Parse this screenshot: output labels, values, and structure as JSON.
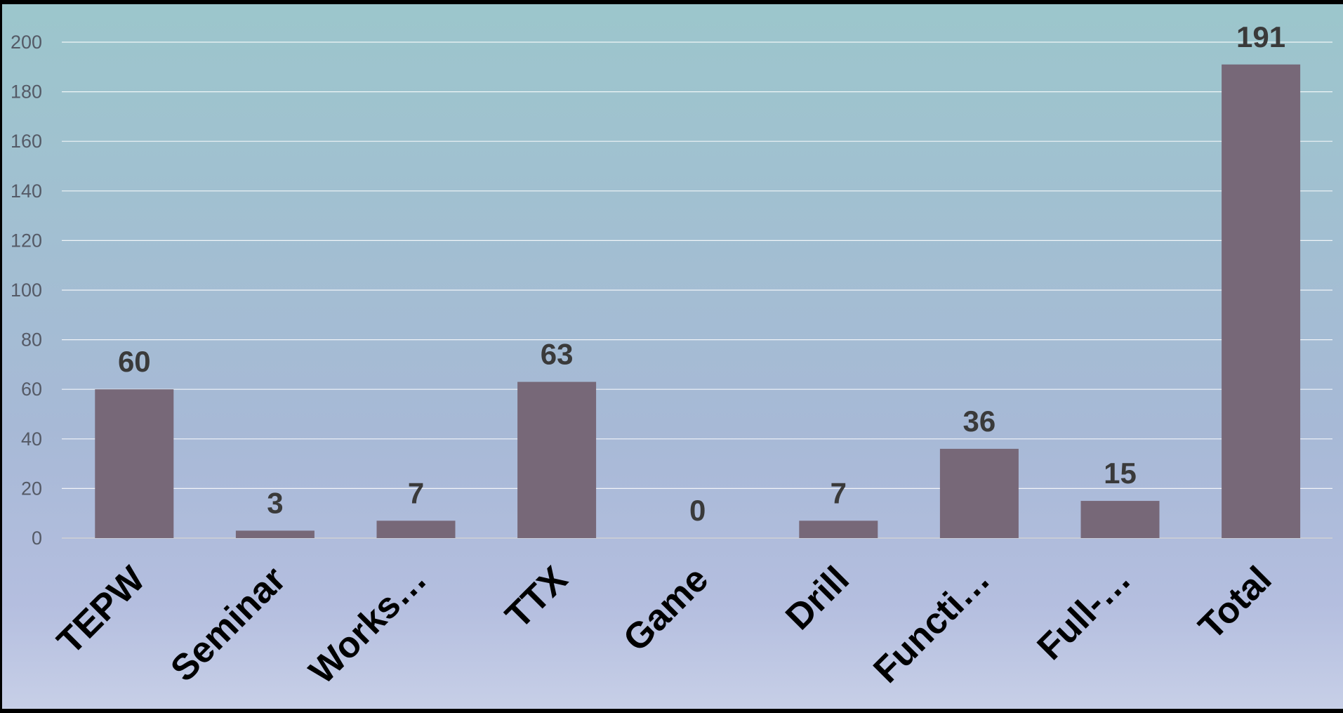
{
  "chart_data": {
    "type": "bar",
    "categories": [
      "TEPW",
      "Seminar",
      "Works…",
      "TTX",
      "Game",
      "Drill",
      "Functi…",
      "Full-…",
      "Total"
    ],
    "values": [
      60,
      3,
      7,
      63,
      0,
      7,
      36,
      15,
      191
    ],
    "ylim": [
      0,
      200
    ],
    "yticks": [
      0,
      20,
      40,
      60,
      80,
      100,
      120,
      140,
      160,
      180,
      200
    ],
    "grid": true,
    "data_labels": true,
    "legend": "none",
    "title": "",
    "xlabel": "",
    "ylabel": "",
    "colors": {
      "bar": "#776878",
      "grid": "#ffffff",
      "background_top": "#9cc6cc",
      "background_bottom": "#c7cfe7"
    }
  }
}
